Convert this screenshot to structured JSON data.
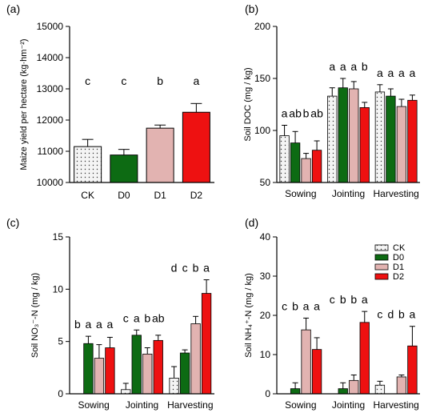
{
  "colors": {
    "CK": "#f4f4f4",
    "D0": "#0d6b13",
    "D1": "#e2b3b1",
    "D2": "#ee1111",
    "error": "#222222"
  },
  "chart_data": [
    {
      "panel": "(a)",
      "type": "bar",
      "ylabel": "Maize yield per hectare (kg·hm⁻²)",
      "ylim": [
        10000,
        15000
      ],
      "yticks": [
        "10000",
        "11000",
        "12000",
        "13000",
        "14000",
        "15000"
      ],
      "categories": [
        "CK",
        "D0",
        "D1",
        "D2"
      ],
      "values": [
        11150,
        10880,
        11740,
        12250
      ],
      "errors": [
        230,
        180,
        100,
        280
      ],
      "letters": [
        "c",
        "c",
        "b",
        "a"
      ]
    },
    {
      "panel": "(b)",
      "type": "bar",
      "ylabel": "Soil DOC (mg / kg)",
      "ylim": [
        50,
        200
      ],
      "yticks": [
        "50",
        "100",
        "150",
        "200"
      ],
      "groups": [
        "Sowing",
        "Jointing",
        "Harvesting"
      ],
      "series": [
        {
          "name": "CK",
          "values": [
            95,
            133,
            137
          ],
          "errors": [
            10,
            8,
            7
          ]
        },
        {
          "name": "D0",
          "values": [
            88,
            141,
            133
          ],
          "errors": [
            11,
            9,
            7
          ]
        },
        {
          "name": "D1",
          "values": [
            73,
            140,
            123
          ],
          "errors": [
            5,
            7,
            7
          ]
        },
        {
          "name": "D2",
          "values": [
            81,
            122,
            129
          ],
          "errors": [
            9,
            5,
            5
          ]
        }
      ],
      "letters": [
        [
          "a",
          "ab",
          "b",
          "ab"
        ],
        [
          "a",
          "a",
          "a",
          "b"
        ],
        [
          "a",
          "a",
          "a",
          "a"
        ]
      ]
    },
    {
      "panel": "(c)",
      "type": "bar",
      "ylabel": "Soil NO₃⁻-N (mg / kg)",
      "ylim": [
        0,
        15
      ],
      "yticks": [
        "0",
        "5",
        "10",
        "15"
      ],
      "groups": [
        "Sowing",
        "Jointing",
        "Harvesting"
      ],
      "series": [
        {
          "name": "CK",
          "values": [
            0,
            0.4,
            1.5
          ],
          "errors": [
            0,
            0.6,
            1.1
          ]
        },
        {
          "name": "D0",
          "values": [
            4.8,
            5.6,
            3.9
          ],
          "errors": [
            0.7,
            0.5,
            0.3
          ]
        },
        {
          "name": "D1",
          "values": [
            3.4,
            3.8,
            6.7
          ],
          "errors": [
            1.3,
            0.6,
            0.7
          ]
        },
        {
          "name": "D2",
          "values": [
            4.4,
            5.1,
            9.6
          ],
          "errors": [
            1.0,
            0.5,
            1.3
          ]
        }
      ],
      "letters": [
        [
          "b",
          "a",
          "a",
          "a"
        ],
        [
          "c",
          "a",
          "b",
          "ab"
        ],
        [
          "d",
          "c",
          "b",
          "a"
        ]
      ]
    },
    {
      "panel": "(d)",
      "type": "bar",
      "ylabel": "Soil NH₄⁺-N (mg / kg)",
      "ylim": [
        0,
        40
      ],
      "yticks": [
        "0",
        "10",
        "20",
        "30",
        "40"
      ],
      "groups": [
        "Sowing",
        "Jointing",
        "Harvesting"
      ],
      "series": [
        {
          "name": "CK",
          "values": [
            0,
            0,
            2.2
          ],
          "errors": [
            0,
            0,
            1.0
          ]
        },
        {
          "name": "D0",
          "values": [
            1.3,
            1.3,
            0
          ],
          "errors": [
            1.5,
            1.5,
            0
          ]
        },
        {
          "name": "D1",
          "values": [
            16.3,
            3.4,
            4.3
          ],
          "errors": [
            3.0,
            1.4,
            0.5
          ]
        },
        {
          "name": "D2",
          "values": [
            11.3,
            18.2,
            12.2
          ],
          "errors": [
            3.0,
            2.8,
            5.0
          ]
        }
      ],
      "letters": [
        [
          "c",
          "b",
          "a",
          "a"
        ],
        [
          "c",
          "b",
          "b",
          "a"
        ],
        [
          "c",
          "d",
          "b",
          "a"
        ]
      ],
      "legend": [
        "CK",
        "D0",
        "D1",
        "D2"
      ],
      "legend_position": "top-right"
    }
  ]
}
